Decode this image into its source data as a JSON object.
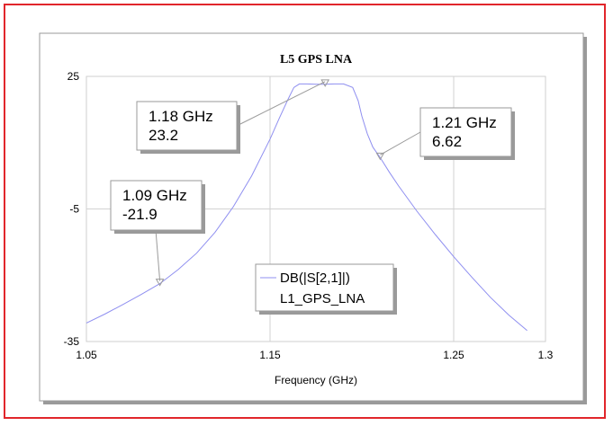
{
  "chart_data": {
    "type": "line",
    "title": "L5 GPS LNA",
    "xlabel": "Frequency (GHz)",
    "ylabel": "",
    "xlim": [
      1.05,
      1.3
    ],
    "ylim": [
      -35,
      25
    ],
    "xticks": [
      "1.05",
      "1.15",
      "1.25",
      "1.3"
    ],
    "xtick_values": [
      1.05,
      1.15,
      1.25,
      1.3
    ],
    "yticks": [
      "25",
      "-5",
      "-35"
    ],
    "ytick_values": [
      25,
      -5,
      -35
    ],
    "grid": true,
    "legend_position": "lower-center",
    "series": [
      {
        "name": "DB(|S[2,1]|)",
        "subname": "L1_GPS_LNA",
        "color": "#8f8ff0",
        "x": [
          1.05,
          1.06,
          1.07,
          1.08,
          1.09,
          1.1,
          1.11,
          1.12,
          1.13,
          1.14,
          1.15,
          1.155,
          1.16,
          1.163,
          1.166,
          1.17,
          1.175,
          1.18,
          1.185,
          1.19,
          1.195,
          1.198,
          1.2,
          1.203,
          1.206,
          1.21,
          1.215,
          1.22,
          1.23,
          1.24,
          1.25,
          1.26,
          1.27,
          1.28,
          1.29
        ],
        "values": [
          -30.8,
          -28.8,
          -26.6,
          -24.3,
          -21.9,
          -18.7,
          -15.0,
          -10.3,
          -4.5,
          2.5,
          10.8,
          15.5,
          20.0,
          22.5,
          23.3,
          23.3,
          23.2,
          23.2,
          23.3,
          23.3,
          22.5,
          19.5,
          16.0,
          12.0,
          9.0,
          6.62,
          3.3,
          0.2,
          -5.5,
          -10.8,
          -15.8,
          -20.5,
          -25.0,
          -29.0,
          -32.5
        ]
      }
    ],
    "markers": [
      {
        "freq_label": "1.18 GHz",
        "value_label": "23.2",
        "x": 1.18,
        "y": 23.2
      },
      {
        "freq_label": "1.21 GHz",
        "value_label": "6.62",
        "x": 1.21,
        "y": 6.62
      },
      {
        "freq_label": "1.09 GHz",
        "value_label": "-21.9",
        "x": 1.09,
        "y": -21.9
      }
    ]
  }
}
